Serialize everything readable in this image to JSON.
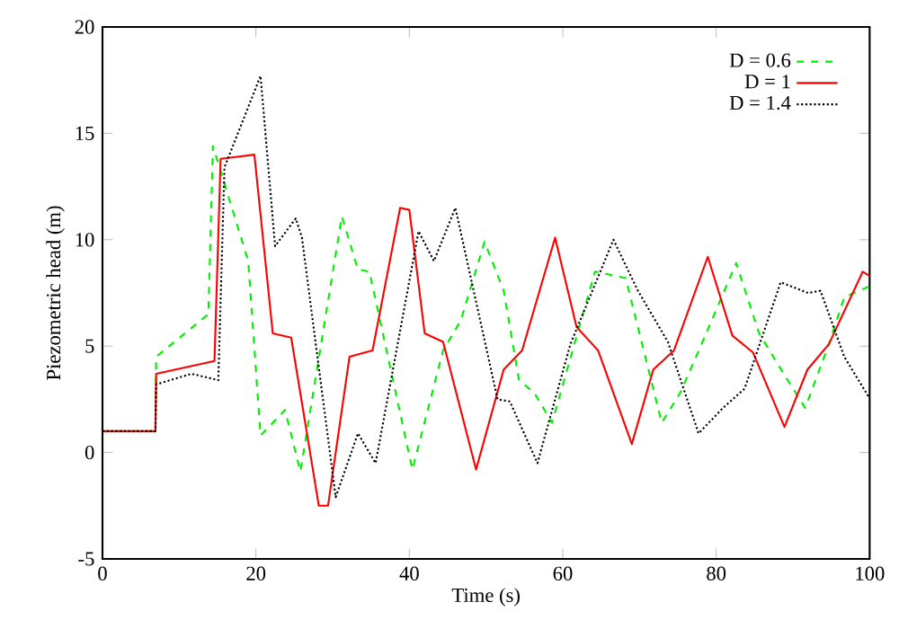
{
  "chart_data": {
    "type": "line",
    "xlabel": "Time (s)",
    "ylabel": "Piezometric head (m)",
    "xlim": [
      0,
      100
    ],
    "xticks": [
      0,
      20,
      40,
      60,
      80,
      100
    ],
    "ylim": [
      -5,
      20
    ],
    "yticks": [
      -5,
      0,
      5,
      10,
      15,
      20
    ],
    "legend": "top right",
    "grid": false,
    "marker": "none",
    "series": [
      {
        "name": "D = 0.6",
        "color": "#00ee00",
        "line_style": "dashed",
        "x": [
          0,
          6.9,
          7.0,
          13.8,
          14.4,
          19.0,
          20.6,
          23.8,
          25.8,
          31.2,
          33.3,
          34.8,
          40.4,
          44.4,
          46.7,
          49.8,
          52.3,
          54.3,
          56.3,
          58.6,
          64.2,
          68.2,
          72.9,
          75.3,
          78.1,
          82.6,
          85.6,
          88.8,
          91.6,
          94.7,
          96.7,
          99.9
        ],
        "values": [
          1,
          1,
          4.5,
          6.5,
          14.4,
          9.0,
          0.8,
          2.0,
          -0.9,
          11.1,
          8.6,
          8.5,
          -0.8,
          4.8,
          6.2,
          9.9,
          7.6,
          3.4,
          2.8,
          1.4,
          8.5,
          8.2,
          1.4,
          2.8,
          5.1,
          8.9,
          5.6,
          3.7,
          2.1,
          5.1,
          7.3,
          7.8
        ]
      },
      {
        "name": "D = 1",
        "color": "#ff0000",
        "line_style": "solid",
        "x": [
          0,
          6.9,
          7.0,
          14.6,
          15.4,
          19.8,
          22.2,
          24.6,
          28.2,
          29.4,
          32.2,
          35.2,
          38.8,
          40.0,
          42.0,
          44.4,
          48.7,
          52.3,
          54.7,
          59.0,
          61.8,
          64.6,
          69.0,
          71.8,
          74.5,
          78.9,
          82.1,
          84.8,
          88.9,
          91.9,
          94.7,
          99.1,
          100
        ],
        "values": [
          1,
          1,
          3.7,
          4.3,
          13.8,
          14.0,
          5.6,
          5.4,
          -2.5,
          -2.5,
          4.5,
          4.8,
          11.5,
          11.4,
          5.6,
          5.2,
          -0.8,
          3.9,
          4.8,
          10.1,
          5.9,
          4.8,
          0.4,
          3.9,
          4.8,
          9.2,
          5.5,
          4.7,
          1.2,
          3.9,
          5.1,
          8.5,
          8.3
        ]
      },
      {
        "name": "D = 1.4",
        "color": "#000000",
        "line_style": "dotted",
        "x": [
          0,
          6.9,
          7.0,
          11.6,
          15.1,
          15.9,
          20.6,
          22.5,
          25.2,
          26.0,
          30.4,
          33.3,
          35.6,
          41.2,
          43.2,
          46.0,
          51.5,
          53.1,
          56.7,
          61.0,
          66.6,
          69.8,
          73.7,
          77.7,
          80.9,
          83.7,
          88.4,
          92.0,
          93.6,
          96.7,
          99.9
        ],
        "values": [
          1,
          1,
          3.2,
          3.7,
          3.4,
          13.4,
          17.7,
          9.7,
          11.0,
          10.1,
          -2.1,
          0.9,
          -0.5,
          10.4,
          9.0,
          11.5,
          2.5,
          2.4,
          -0.5,
          5.1,
          10.0,
          7.6,
          5.2,
          0.9,
          2.1,
          3.0,
          8.0,
          7.5,
          7.6,
          4.5,
          2.6
        ]
      }
    ]
  }
}
